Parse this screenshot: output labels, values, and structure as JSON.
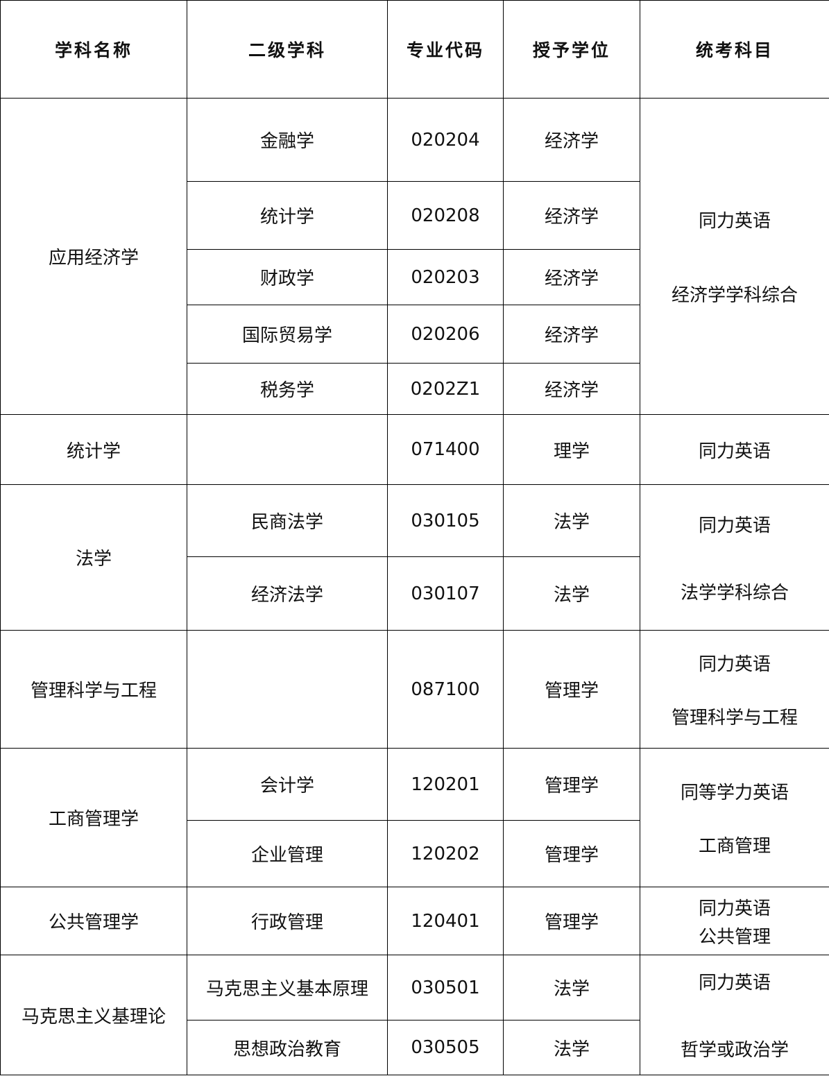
{
  "headers": [
    "学科名称",
    "二级学科",
    "专业代码",
    "授予学位",
    "统考科目"
  ],
  "groups": [
    {
      "name": "应用经济学",
      "exam": [
        "同力英语",
        "经济学学科综合"
      ],
      "rows": [
        [
          "金融学",
          "020204",
          "经济学"
        ],
        [
          "统计学",
          "020208",
          "经济学"
        ],
        [
          "财政学",
          "020203",
          "经济学"
        ],
        [
          "国际贸易学",
          "020206",
          "经济学"
        ],
        [
          "税务学",
          "0202Z1",
          "经济学"
        ]
      ]
    },
    {
      "name": "统计学",
      "exam": [
        "同力英语"
      ],
      "rows": [
        [
          "",
          "071400",
          "理学"
        ]
      ]
    },
    {
      "name": "法学",
      "exam": [
        "同力英语",
        "法学学科综合"
      ],
      "rows": [
        [
          "民商法学",
          "030105",
          "法学"
        ],
        [
          "经济法学",
          "030107",
          "法学"
        ]
      ]
    },
    {
      "name": "管理科学与工程",
      "exam": [
        "同力英语",
        "管理科学与工程"
      ],
      "rows": [
        [
          "",
          "087100",
          "管理学"
        ]
      ]
    },
    {
      "name": "工商管理学",
      "exam": [
        "同等学力英语",
        "工商管理"
      ],
      "rows": [
        [
          "会计学",
          "120201",
          "管理学"
        ],
        [
          "企业管理",
          "120202",
          "管理学"
        ]
      ]
    },
    {
      "name": "公共管理学",
      "exam": [
        "同力英语",
        "公共管理"
      ],
      "rows": [
        [
          "行政管理",
          "120401",
          "管理学"
        ]
      ]
    },
    {
      "name": "马克思主义基理论",
      "exam": [
        "同力英语",
        "哲学或政治学"
      ],
      "rows": [
        [
          "马克思主义基本原理",
          "030501",
          "法学"
        ],
        [
          "思想政治教育",
          "030505",
          "法学"
        ]
      ]
    }
  ]
}
